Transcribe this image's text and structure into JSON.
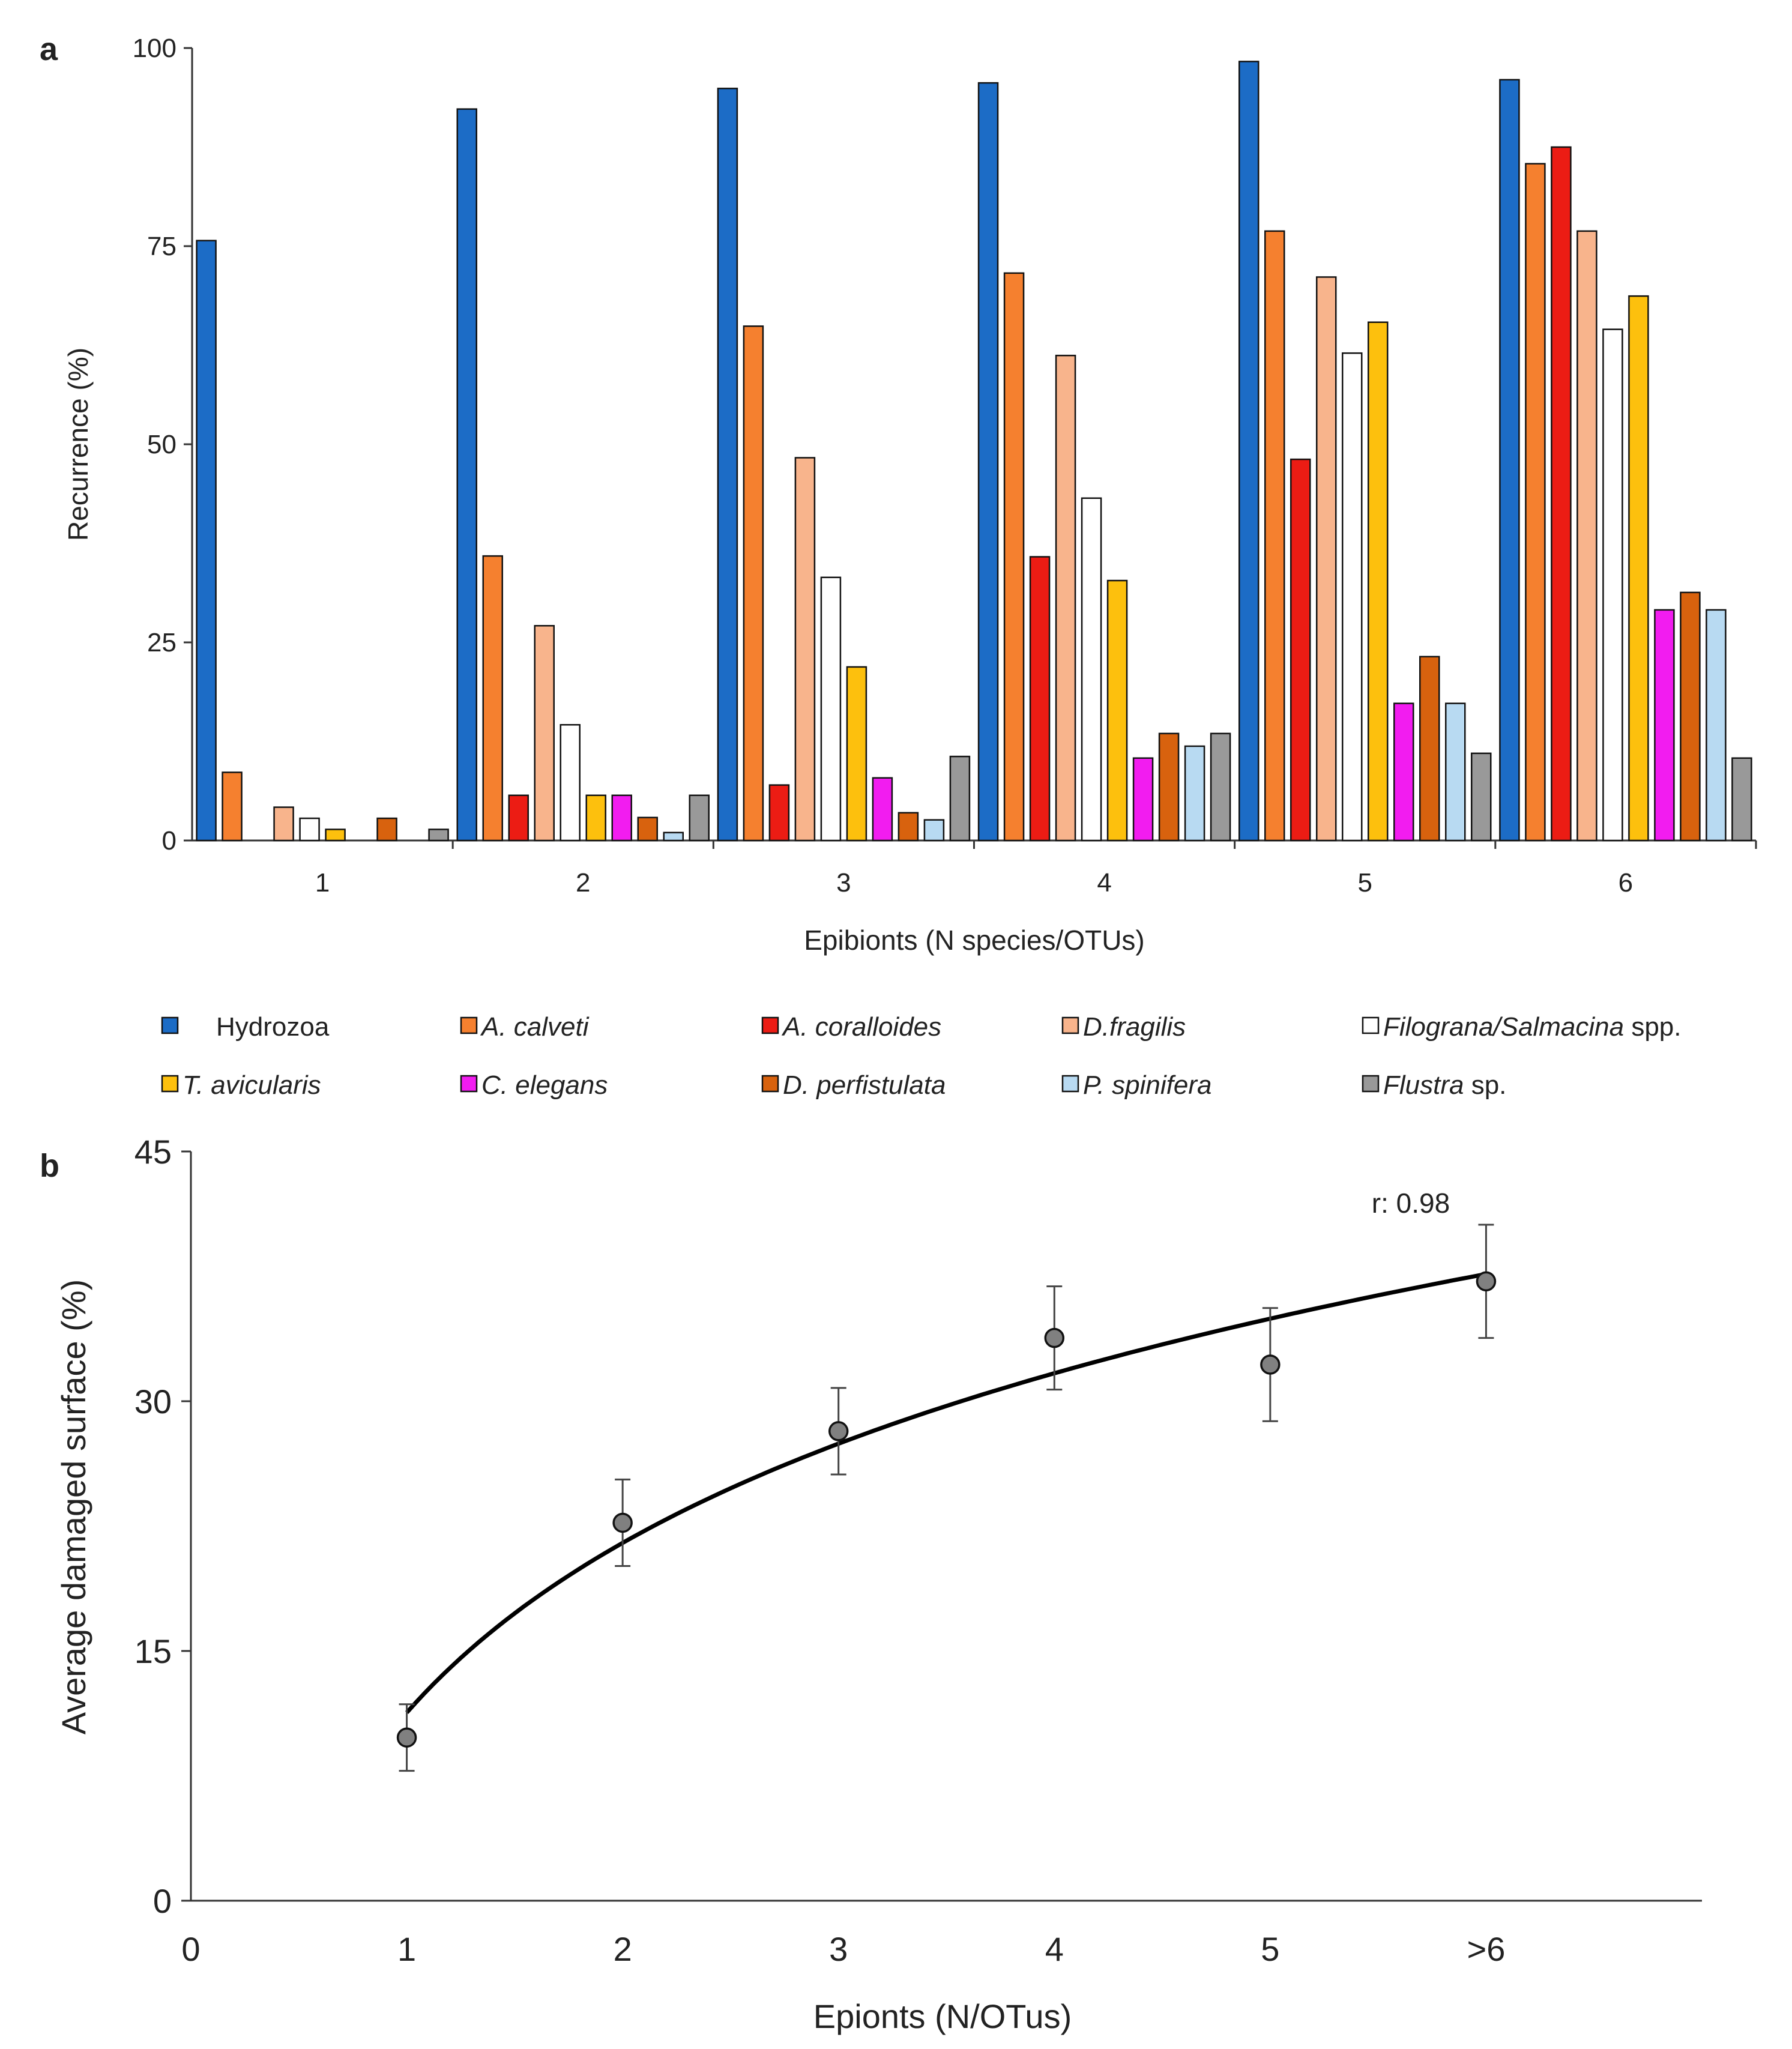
{
  "panel_a": {
    "label": "a",
    "ylabel": "Recurrence (%)",
    "xlabel": "Epibionts (N species/OTUs)"
  },
  "panel_b": {
    "label": "b",
    "ylabel": "Average damaged surface (%)",
    "xlabel": "Epionts (N/OTus)",
    "annotation": "r: 0.98"
  },
  "chart_data": [
    {
      "type": "bar",
      "ylabel": "Recurrence (%)",
      "xlabel": "Epibionts (N species/OTUs)",
      "ylim": [
        0,
        100
      ],
      "yticks": [
        "0",
        "25",
        "50",
        "75",
        "100"
      ],
      "categories": [
        "1",
        "2",
        "3",
        "4",
        "5",
        "6"
      ],
      "legend_position": "bottom",
      "series": [
        {
          "name": "Hydrozoa",
          "name_tail": "",
          "italic": false,
          "color": "#1c6cc6",
          "values": [
            75.7,
            92.3,
            94.9,
            95.6,
            98.3,
            96.0
          ]
        },
        {
          "name": "A. calveti",
          "name_tail": "",
          "italic": true,
          "color": "#f5802f",
          "values": [
            8.6,
            35.9,
            64.9,
            71.6,
            76.9,
            85.4
          ]
        },
        {
          "name": "A. coralloides",
          "name_tail": "",
          "italic": true,
          "color": "#ec1c14",
          "values": [
            0,
            5.7,
            7.0,
            35.8,
            48.1,
            87.5
          ]
        },
        {
          "name": "D.fragilis",
          "name_tail": "",
          "italic": true,
          "color": "#f8b48c",
          "values": [
            4.2,
            27.1,
            48.3,
            61.2,
            71.1,
            76.9
          ]
        },
        {
          "name": "Filograna/Salmacina",
          "name_tail": " spp.",
          "italic": true,
          "color": "#ffffff",
          "values": [
            2.8,
            14.6,
            33.2,
            43.2,
            61.5,
            64.5
          ]
        },
        {
          "name": "T. avicularis",
          "name_tail": "",
          "italic": true,
          "color": "#fdc00d",
          "values": [
            1.4,
            5.7,
            21.9,
            32.8,
            65.4,
            68.7
          ]
        },
        {
          "name": "C. elegans",
          "name_tail": "",
          "italic": true,
          "color": "#f21cf0",
          "values": [
            0,
            5.7,
            7.9,
            10.4,
            17.3,
            29.1
          ]
        },
        {
          "name": "D. perfistulata",
          "name_tail": "",
          "italic": true,
          "color": "#d8620e",
          "values": [
            2.8,
            2.9,
            3.5,
            13.5,
            23.2,
            31.3
          ]
        },
        {
          "name": "P. spinifera",
          "name_tail": "",
          "italic": true,
          "color": "#b8daf2",
          "values": [
            0,
            1.0,
            2.6,
            11.9,
            17.3,
            29.1
          ]
        },
        {
          "name": "Flustra",
          "name_tail": " sp.",
          "italic": true,
          "color": "#999999",
          "values": [
            1.4,
            5.7,
            10.6,
            13.5,
            11.0,
            10.4
          ]
        }
      ]
    },
    {
      "type": "scatter",
      "ylabel": "Average damaged surface (%)",
      "xlabel": "Epionts (N/OTus)",
      "xlim": [
        0,
        7
      ],
      "ylim": [
        0,
        45
      ],
      "xticks": [
        {
          "value": 0,
          "label": "0"
        },
        {
          "value": 1,
          "label": "1"
        },
        {
          "value": 2,
          "label": "2"
        },
        {
          "value": 3,
          "label": "3"
        },
        {
          "value": 4,
          "label": "4"
        },
        {
          "value": 5,
          "label": "5"
        },
        {
          "value": 6,
          "label": ">6"
        }
      ],
      "yticks": [
        "0",
        "15",
        "30",
        "45"
      ],
      "points": [
        {
          "x": 1,
          "y": 9.8,
          "err": 2.0
        },
        {
          "x": 2,
          "y": 22.7,
          "err": 2.6
        },
        {
          "x": 3,
          "y": 28.2,
          "err": 2.6
        },
        {
          "x": 4,
          "y": 33.8,
          "err": 3.1
        },
        {
          "x": 5,
          "y": 32.2,
          "err": 3.4
        },
        {
          "x": 6,
          "y": 37.2,
          "err": 3.4
        }
      ],
      "trendline": {
        "type": "logarithmic",
        "a": 11.3,
        "b": 14.7
      },
      "annotation": "r: 0.98",
      "marker_color": "#808080"
    }
  ]
}
